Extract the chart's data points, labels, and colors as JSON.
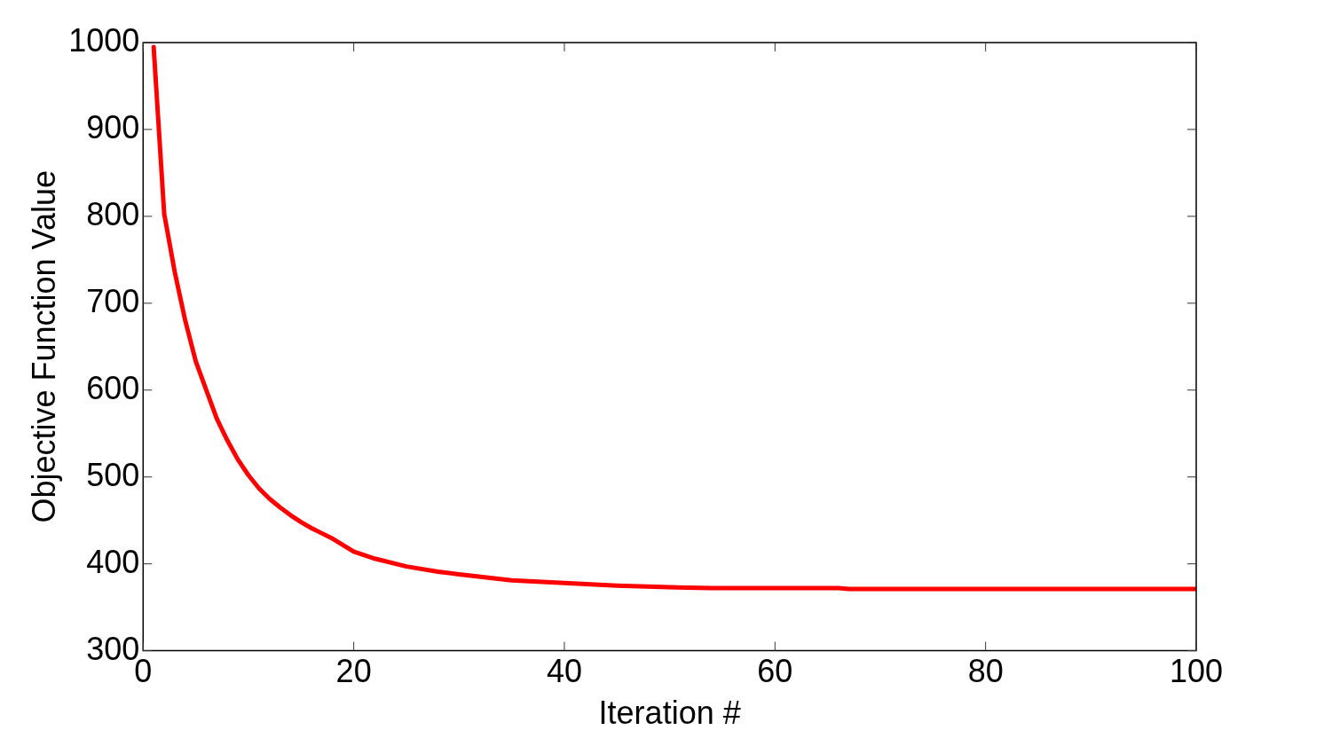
{
  "chart_data": {
    "type": "line",
    "xlabel": "Iteration #",
    "ylabel": "Objective Function Value",
    "x": [
      1,
      2,
      3,
      4,
      5,
      6,
      7,
      8,
      9,
      10,
      11,
      12,
      13,
      14,
      15,
      16,
      17,
      18,
      20,
      22,
      25,
      28,
      30,
      35,
      40,
      45,
      50,
      54,
      66,
      67,
      100
    ],
    "series": [
      {
        "color": "#ff0000",
        "values": [
          995,
          803,
          736,
          680,
          633,
          600,
          567,
          542,
          520,
          502,
          487,
          475,
          465,
          456,
          448,
          441,
          435,
          429,
          414,
          406,
          397,
          391,
          388,
          381,
          378,
          375,
          373,
          372,
          372,
          371,
          371
        ]
      }
    ],
    "xlim": [
      0,
      100
    ],
    "xticks": [
      0,
      20,
      40,
      60,
      80,
      100
    ],
    "ylim": [
      300,
      1000
    ],
    "yticks": [
      300,
      400,
      500,
      600,
      700,
      800,
      900,
      1000
    ],
    "grid": false,
    "legend": false,
    "marker": "none",
    "line_style": "solid"
  }
}
